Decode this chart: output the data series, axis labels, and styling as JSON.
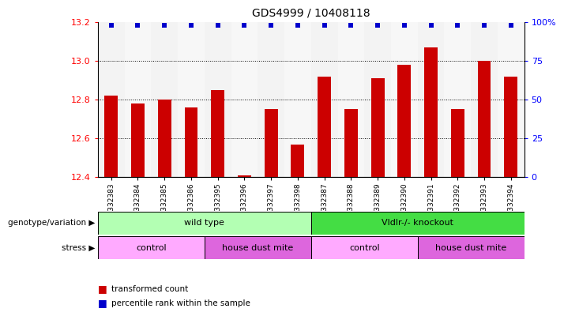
{
  "title": "GDS4999 / 10408118",
  "samples": [
    "GSM1332383",
    "GSM1332384",
    "GSM1332385",
    "GSM1332386",
    "GSM1332395",
    "GSM1332396",
    "GSM1332397",
    "GSM1332398",
    "GSM1332387",
    "GSM1332388",
    "GSM1332389",
    "GSM1332390",
    "GSM1332391",
    "GSM1332392",
    "GSM1332393",
    "GSM1332394"
  ],
  "bar_values": [
    12.82,
    12.78,
    12.8,
    12.76,
    12.85,
    12.41,
    12.75,
    12.57,
    12.92,
    12.75,
    12.91,
    12.98,
    13.07,
    12.75,
    13.0,
    12.92
  ],
  "bar_color": "#cc0000",
  "percentile_color": "#0000cc",
  "ylim_left": [
    12.4,
    13.2
  ],
  "ylim_right": [
    0,
    100
  ],
  "yticks_left": [
    12.4,
    12.6,
    12.8,
    13.0,
    13.2
  ],
  "yticks_right": [
    0,
    25,
    50,
    75,
    100
  ],
  "ytick_right_labels": [
    "0",
    "25",
    "50",
    "75",
    "100%"
  ],
  "grid_lines": [
    12.6,
    12.8,
    13.0
  ],
  "genotype_groups": [
    {
      "label": "wild type",
      "start": 0,
      "end": 8,
      "color": "#b3ffb3"
    },
    {
      "label": "Vldlr-/- knockout",
      "start": 8,
      "end": 16,
      "color": "#44dd44"
    }
  ],
  "stress_groups": [
    {
      "label": "control",
      "start": 0,
      "end": 4,
      "color": "#ffaaff"
    },
    {
      "label": "house dust mite",
      "start": 4,
      "end": 8,
      "color": "#dd66dd"
    },
    {
      "label": "control",
      "start": 8,
      "end": 12,
      "color": "#ffaaff"
    },
    {
      "label": "house dust mite",
      "start": 12,
      "end": 16,
      "color": "#dd66dd"
    }
  ],
  "legend_items": [
    {
      "label": "transformed count",
      "color": "#cc0000"
    },
    {
      "label": "percentile rank within the sample",
      "color": "#0000cc"
    }
  ],
  "background_color": "#ffffff"
}
